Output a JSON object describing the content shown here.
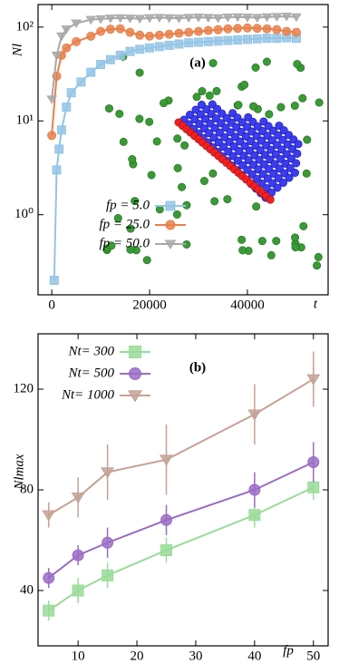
{
  "chart_data": [
    {
      "type": "line",
      "ylog": true,
      "annotation": "(a)",
      "xlabel": "t",
      "ylabel": "Nl",
      "legend": "lower left",
      "xlim": [
        -2800,
        56500
      ],
      "ylim": [
        0.14,
        174
      ],
      "xticks": [
        0,
        20000,
        40000
      ],
      "yticks": [
        {
          "value": 1,
          "label": "10⁰"
        },
        {
          "value": 10,
          "label": "10¹"
        },
        {
          "value": 100,
          "label": "10²"
        }
      ],
      "series": [
        {
          "name": "fp = 5.0",
          "color": "#94c4e6",
          "marker": "s",
          "x": [
            500,
            1000,
            1500,
            2000,
            3000,
            4000,
            6000,
            8000,
            10000,
            12000,
            14000,
            16000,
            18000,
            20000,
            22000,
            24000,
            26000,
            28000,
            30000,
            32000,
            34000,
            36000,
            38000,
            40000,
            42000,
            44000,
            46000,
            48000,
            50000
          ],
          "values": [
            0.2,
            3,
            5,
            8,
            14,
            20,
            26,
            33,
            40,
            45,
            50,
            55,
            58,
            60,
            62,
            64,
            66,
            68,
            69,
            70,
            71,
            72,
            73,
            74,
            75,
            76,
            76,
            77,
            76
          ]
        },
        {
          "name": "fp = 25.0",
          "color": "#e8804a",
          "marker": "o",
          "x": [
            0,
            1000,
            2000,
            3000,
            5000,
            8000,
            10000,
            12000,
            14000,
            16000,
            18000,
            20000,
            22000,
            24000,
            26000,
            28000,
            30000,
            32000,
            34000,
            36000,
            38000,
            40000,
            42000,
            44000,
            46000,
            48000,
            50000
          ],
          "values": [
            7,
            30,
            50,
            60,
            70,
            80,
            90,
            95,
            96,
            88,
            82,
            80,
            82,
            84,
            86,
            88,
            90,
            92,
            94,
            96,
            97,
            98,
            97,
            96,
            94,
            90,
            88
          ]
        },
        {
          "name": "fp = 50.0",
          "color": "#a8a8a8",
          "marker": "v",
          "x": [
            0,
            1000,
            2000,
            3000,
            5000,
            8000,
            10000,
            12000,
            14000,
            16000,
            18000,
            20000,
            22000,
            24000,
            26000,
            28000,
            30000,
            32000,
            34000,
            36000,
            38000,
            40000,
            42000,
            44000,
            46000,
            48000,
            50000
          ],
          "values": [
            17,
            50,
            80,
            95,
            110,
            120,
            122,
            124,
            125,
            124,
            123,
            125,
            126,
            125,
            124,
            126,
            127,
            126,
            125,
            127,
            128,
            127,
            126,
            128,
            129,
            130,
            128
          ]
        }
      ]
    },
    {
      "type": "line",
      "ylog": false,
      "annotation": "(b)",
      "xlabel": "fp",
      "ylabel": "Nlmax",
      "legend": "upper left",
      "xlim": [
        3.2,
        52.5
      ],
      "ylim": [
        18,
        142
      ],
      "xticks": [
        10,
        20,
        30,
        40,
        50
      ],
      "yticks": [
        40,
        80,
        120
      ],
      "series": [
        {
          "name": "Nt= 300",
          "color": "#98dc98",
          "marker": "s",
          "x": [
            5,
            10,
            15,
            25,
            40,
            50
          ],
          "values": [
            32,
            40,
            46,
            56,
            70,
            81
          ],
          "errors": [
            4,
            5,
            5,
            5,
            5,
            5
          ]
        },
        {
          "name": "Nt= 500",
          "color": "#9a6cc4",
          "marker": "o",
          "x": [
            5,
            10,
            15,
            25,
            40,
            50
          ],
          "values": [
            45,
            54,
            59,
            68,
            80,
            91
          ],
          "errors": [
            4,
            4,
            6,
            6,
            7,
            8
          ]
        },
        {
          "name": "Nt= 1000",
          "color": "#c4a294",
          "marker": "v",
          "x": [
            5,
            10,
            15,
            25,
            40,
            50
          ],
          "values": [
            70,
            77,
            87,
            92,
            110,
            124
          ],
          "errors": [
            5,
            8,
            11,
            14,
            12,
            11
          ]
        }
      ]
    }
  ]
}
